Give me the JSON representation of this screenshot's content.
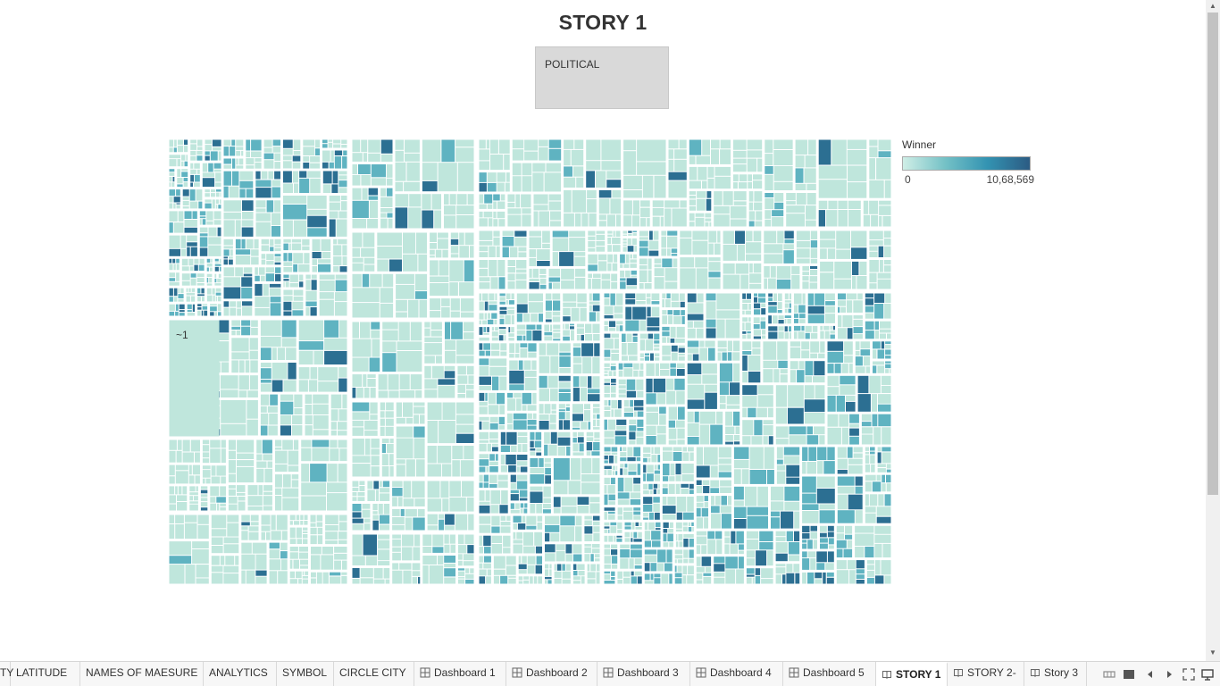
{
  "story": {
    "title": "STORY 1",
    "point_caption": "POLITICAL"
  },
  "treemap": {
    "label": "~1",
    "measure": "Winner",
    "colors": {
      "low": "#bfe6dc",
      "mid": "#5fb3c1",
      "high": "#2c6f92",
      "gap": "#ffffff"
    }
  },
  "legend": {
    "title": "Winner",
    "min_label": "0",
    "max_label": "10,68,569"
  },
  "tabs": [
    {
      "label": "TY",
      "icon": "none",
      "active": false
    },
    {
      "label": "LATITUDE",
      "icon": "none",
      "active": false
    },
    {
      "label": "NAMES OF MAESURE",
      "icon": "none",
      "active": false
    },
    {
      "label": "ANALYTICS",
      "icon": "none",
      "active": false
    },
    {
      "label": "SYMBOL",
      "icon": "none",
      "active": false
    },
    {
      "label": "CIRCLE CITY",
      "icon": "none",
      "active": false
    },
    {
      "label": "Dashboard 1",
      "icon": "dashboard-icon",
      "active": false
    },
    {
      "label": "Dashboard 2",
      "icon": "dashboard-icon",
      "active": false
    },
    {
      "label": "Dashboard 3",
      "icon": "dashboard-icon",
      "active": false
    },
    {
      "label": "Dashboard 4",
      "icon": "dashboard-icon",
      "active": false
    },
    {
      "label": "Dashboard 5",
      "icon": "dashboard-icon",
      "active": false
    },
    {
      "label": "STORY 1",
      "icon": "story-icon",
      "active": true
    },
    {
      "label": "STORY 2-",
      "icon": "story-icon",
      "active": false
    },
    {
      "label": "Story 3",
      "icon": "story-icon",
      "active": false
    }
  ],
  "controls": [
    "filmstrip-icon",
    "tabs-icon",
    "prev-sheet-icon",
    "next-sheet-icon",
    "fullscreen-icon",
    "presentation-icon"
  ]
}
